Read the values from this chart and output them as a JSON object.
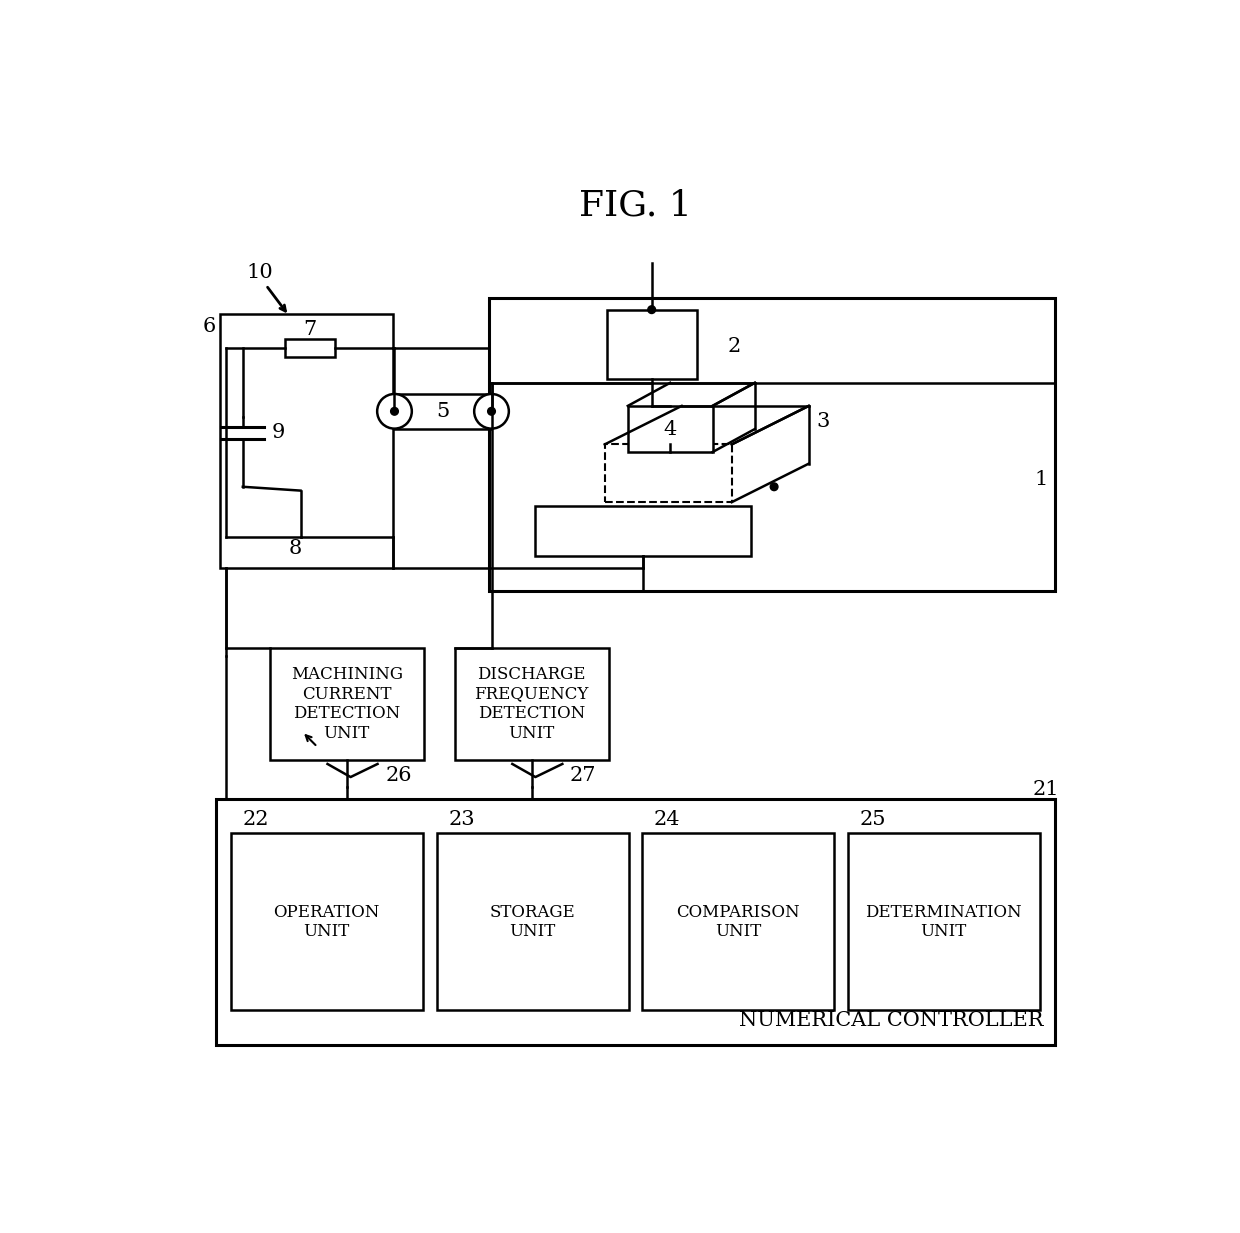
{
  "title": "FIG. 1",
  "bg_color": "#ffffff",
  "label_10": "10",
  "label_6": "6",
  "label_7": "7",
  "label_8": "8",
  "label_9": "9",
  "label_5": "5",
  "label_4": "4",
  "label_3": "3",
  "label_2": "2",
  "label_1": "1",
  "label_26": "26",
  "label_27": "27",
  "label_21": "21",
  "label_22": "22",
  "label_23": "23",
  "label_24": "24",
  "label_25": "25",
  "box_machining": "MACHINING\nCURRENT\nDETECTION\nUNIT",
  "box_discharge": "DISCHARGE\nFREQUENCY\nDETECTION\nUNIT",
  "box_operation": "OPERATION\nUNIT",
  "box_storage": "STORAGE\nUNIT",
  "box_comparison": "COMPARISON\nUNIT",
  "box_determination": "DETERMINATION\nUNIT",
  "label_nc": "NUMERICAL CONTROLLER"
}
